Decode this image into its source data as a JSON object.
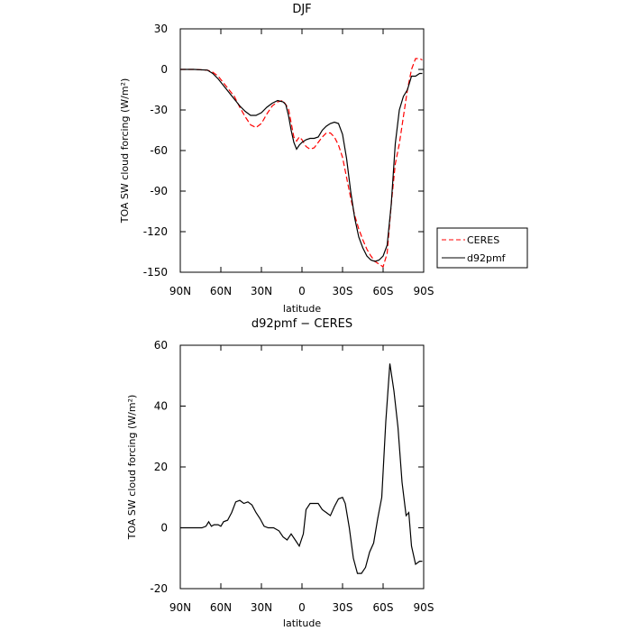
{
  "chart_data": [
    {
      "type": "line",
      "title": "DJF",
      "xlabel": "latitude",
      "ylabel": "TOA SW cloud forcing (W/m²)",
      "xticks": [
        "90N",
        "60N",
        "30N",
        "0",
        "30S",
        "60S",
        "90S"
      ],
      "yticks": [
        "30",
        "0",
        "-30",
        "-60",
        "-90",
        "-120",
        "-150"
      ],
      "ylim": [
        -150,
        30
      ],
      "xlim": [
        90,
        -90
      ],
      "legend_position": "right",
      "series": [
        {
          "name": "CERES",
          "color": "#ff0000",
          "style": "dashed",
          "x": [
            90,
            80,
            70,
            66,
            62,
            58,
            54,
            50,
            46,
            42,
            38,
            34,
            30,
            26,
            22,
            18,
            14,
            10,
            6,
            4,
            2,
            0,
            -3,
            -6,
            -9,
            -12,
            -15,
            -18,
            -21,
            -24,
            -27,
            -30,
            -33,
            -36,
            -39,
            -42,
            -45,
            -48,
            -51,
            -54,
            -57,
            -60,
            -63,
            -66,
            -69,
            -72,
            -75,
            -78,
            -81,
            -84,
            -87,
            -89
          ],
          "y": [
            0,
            0,
            -0.5,
            -2,
            -5,
            -10,
            -15,
            -20,
            -28,
            -35,
            -41,
            -43,
            -40,
            -33,
            -27,
            -24,
            -23,
            -29,
            -50,
            -53,
            -50,
            -52,
            -57,
            -59,
            -58,
            -54,
            -50,
            -47,
            -47,
            -50,
            -56,
            -65,
            -80,
            -95,
            -108,
            -118,
            -126,
            -133,
            -138,
            -142,
            -144,
            -146,
            -136,
            -100,
            -70,
            -55,
            -35,
            -15,
            0,
            8,
            8,
            7
          ]
        },
        {
          "name": "d92pmf",
          "color": "#000000",
          "style": "solid",
          "x": [
            90,
            80,
            70,
            66,
            62,
            58,
            54,
            50,
            46,
            42,
            38,
            34,
            30,
            26,
            22,
            18,
            14,
            12,
            10,
            8,
            6,
            4,
            2,
            0,
            -3,
            -6,
            -9,
            -12,
            -15,
            -18,
            -21,
            -24,
            -27,
            -30,
            -33,
            -36,
            -39,
            -42,
            -45,
            -48,
            -51,
            -54,
            -57,
            -60,
            -63,
            -66,
            -69,
            -72,
            -75,
            -78,
            -81,
            -84,
            -87,
            -89
          ],
          "y": [
            0,
            0,
            -0.5,
            -3,
            -7,
            -12,
            -17,
            -22,
            -27,
            -31,
            -34,
            -34,
            -32,
            -28,
            -25,
            -23,
            -24,
            -26,
            -34,
            -45,
            -54,
            -59,
            -56,
            -54,
            -52,
            -51,
            -51,
            -50,
            -45,
            -42,
            -40,
            -39,
            -40,
            -48,
            -66,
            -90,
            -110,
            -124,
            -132,
            -138,
            -141,
            -142,
            -141,
            -138,
            -130,
            -100,
            -55,
            -30,
            -20,
            -15,
            -5,
            -5,
            -3,
            -3
          ]
        }
      ]
    },
    {
      "type": "line",
      "title": "d92pmf − CERES",
      "xlabel": "latitude",
      "ylabel": "TOA SW cloud forcing (W/m²)",
      "xticks": [
        "90N",
        "60N",
        "30N",
        "0",
        "30S",
        "60S",
        "90S"
      ],
      "yticks": [
        "60",
        "40",
        "20",
        "0",
        "-20"
      ],
      "ylim": [
        -20,
        60
      ],
      "xlim": [
        90,
        -90
      ],
      "series": [
        {
          "color": "#000000",
          "style": "solid",
          "x": [
            90,
            84,
            78,
            74,
            71,
            69,
            67,
            65,
            62,
            60,
            58,
            55,
            52,
            49,
            46,
            43,
            40,
            37,
            34,
            31,
            28,
            25,
            21,
            17,
            14,
            11,
            8,
            5,
            2,
            -1,
            -3,
            -6,
            -9,
            -12,
            -15,
            -18,
            -21,
            -24,
            -27,
            -30,
            -32,
            -35,
            -38,
            -41,
            -44,
            -47,
            -50,
            -53,
            -56,
            -59,
            -62,
            -65,
            -68,
            -71,
            -74,
            -77,
            -79,
            -81,
            -84,
            -87,
            -89
          ],
          "y": [
            0,
            0,
            0,
            0,
            0.5,
            2,
            0.5,
            1,
            1,
            0.5,
            2,
            2.5,
            5,
            8.5,
            9,
            8,
            8.5,
            7.5,
            5,
            3,
            0.5,
            0,
            0,
            -1,
            -3,
            -4,
            -2,
            -4,
            -6,
            -2,
            6,
            8,
            8,
            8,
            6,
            5,
            4,
            7,
            9.5,
            10,
            8,
            0,
            -10,
            -15,
            -15,
            -13,
            -8,
            -5,
            3,
            10,
            35,
            54,
            45,
            33,
            15,
            4,
            5,
            -6,
            -12,
            -11,
            -11
          ]
        }
      ]
    }
  ]
}
